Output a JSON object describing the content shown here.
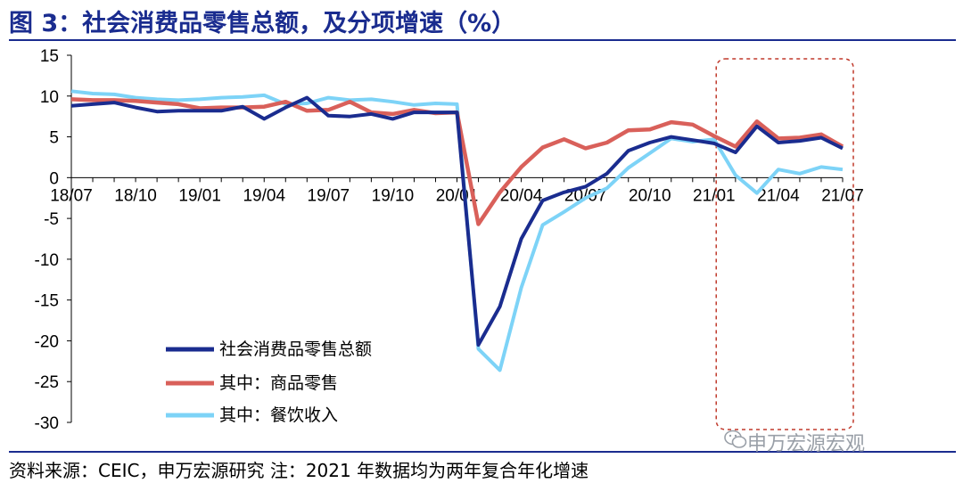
{
  "header": {
    "title": "图 3：社会消费品零售总额，及分项增速（%）"
  },
  "footer": {
    "source": "资料来源：CEIC，申万宏源研究 注：2021 年数据均为两年复合年化增速"
  },
  "watermark": {
    "text": "申万宏源宏观",
    "icon": "wechat-icon"
  },
  "colors": {
    "title": "#1a2c8f",
    "total": "#1a2c8f",
    "goods": "#d9605a",
    "catering": "#7dd3f7",
    "highlight": "#c0392b"
  },
  "chart_data": {
    "type": "line",
    "title": "",
    "xlabel": "",
    "ylabel": "",
    "ylim": [
      -30,
      15
    ],
    "yticks": [
      "15",
      "10",
      "5",
      "0",
      "-5",
      "-10",
      "-15",
      "-20",
      "-25",
      "-30"
    ],
    "grid": false,
    "legend": "bottom-left",
    "x_labels": [
      "18/07",
      "18/10",
      "19/01",
      "19/04",
      "19/07",
      "19/10",
      "20/01",
      "20/04",
      "20/07",
      "20/10",
      "21/01",
      "21/04",
      "21/07"
    ],
    "x": [
      "18/07",
      "18/08",
      "18/09",
      "18/10",
      "18/11",
      "18/12",
      "19/01",
      "19/02",
      "19/03",
      "19/04",
      "19/05",
      "19/06",
      "19/07",
      "19/08",
      "19/09",
      "19/10",
      "19/11",
      "19/12",
      "20/01",
      "20/02",
      "20/03",
      "20/04",
      "20/05",
      "20/06",
      "20/07",
      "20/08",
      "20/09",
      "20/10",
      "20/11",
      "20/12",
      "21/01",
      "21/02",
      "21/03",
      "21/04",
      "21/05",
      "21/06",
      "21/07"
    ],
    "series": [
      {
        "name": "社会消费品零售总额",
        "values": [
          8.8,
          9.0,
          9.2,
          8.6,
          8.1,
          8.2,
          8.2,
          8.2,
          8.7,
          7.2,
          8.6,
          9.8,
          7.6,
          7.5,
          7.8,
          7.2,
          8.0,
          8.0,
          8.0,
          -20.5,
          -15.8,
          -7.5,
          -2.8,
          -1.8,
          -1.1,
          0.5,
          3.3,
          4.3,
          5.0,
          4.6,
          4.2,
          3.1,
          6.3,
          4.3,
          4.5,
          4.9,
          3.6
        ]
      },
      {
        "name": "其中：商品零售",
        "values": [
          9.6,
          9.5,
          9.5,
          9.4,
          9.2,
          9.0,
          8.5,
          8.6,
          8.6,
          8.7,
          9.3,
          8.2,
          8.3,
          9.3,
          8.0,
          7.8,
          8.3,
          7.9,
          8.0,
          -5.7,
          -1.8,
          1.3,
          3.7,
          4.7,
          3.6,
          4.3,
          5.8,
          5.9,
          6.8,
          6.5,
          5.1,
          3.8,
          6.9,
          4.8,
          4.9,
          5.3,
          3.8
        ]
      },
      {
        "name": "其中：餐饮收入",
        "values": [
          10.6,
          10.3,
          10.2,
          9.8,
          9.6,
          9.5,
          9.6,
          9.8,
          9.9,
          10.1,
          9.0,
          9.1,
          9.8,
          9.5,
          9.6,
          9.3,
          8.9,
          9.1,
          9.0,
          -21.0,
          -23.6,
          -13.5,
          -5.8,
          -4.2,
          -2.5,
          -1.3,
          1.2,
          3.0,
          4.8,
          4.4,
          4.7,
          0.3,
          -1.9,
          1.0,
          0.5,
          1.3,
          1.0
        ]
      }
    ],
    "highlight_box": {
      "x_start": "21/02",
      "x_end": "21/07"
    }
  }
}
